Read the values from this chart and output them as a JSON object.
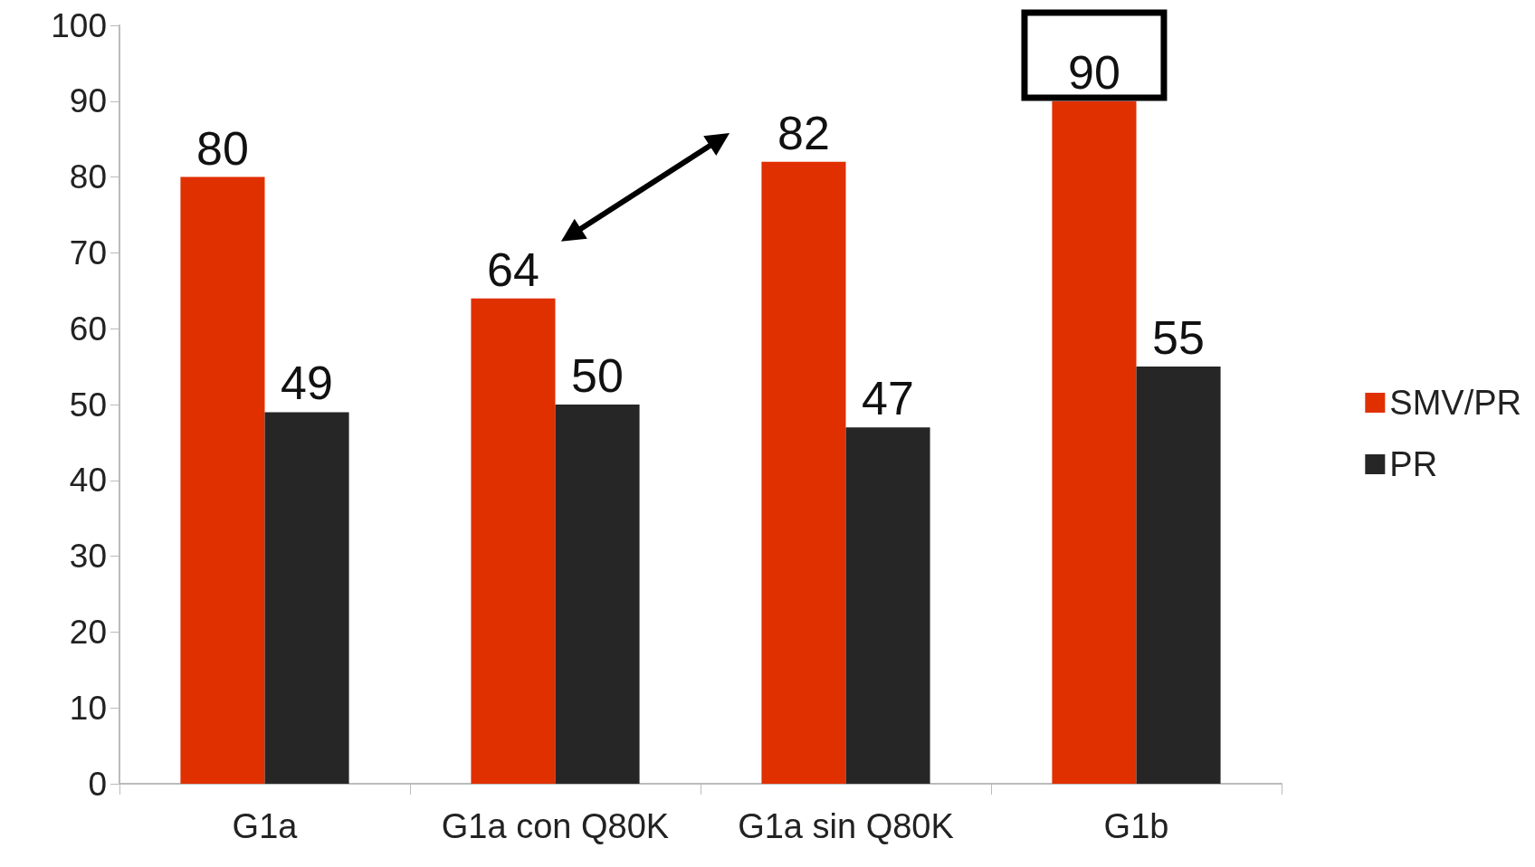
{
  "chart_data": {
    "type": "bar",
    "categories": [
      "G1a",
      "G1a con Q80K",
      "G1a sin Q80K",
      "G1b"
    ],
    "series": [
      {
        "name": "SMV/PR",
        "color": "#e03000",
        "values": [
          80,
          64,
          82,
          90
        ]
      },
      {
        "name": "PR",
        "color": "#262626",
        "values": [
          49,
          50,
          47,
          55
        ]
      }
    ],
    "ylim": [
      0,
      100
    ],
    "yticks": [
      0,
      10,
      20,
      30,
      40,
      50,
      60,
      70,
      80,
      90,
      100
    ],
    "grid": false,
    "legend": "right",
    "data_labels": true
  }
}
